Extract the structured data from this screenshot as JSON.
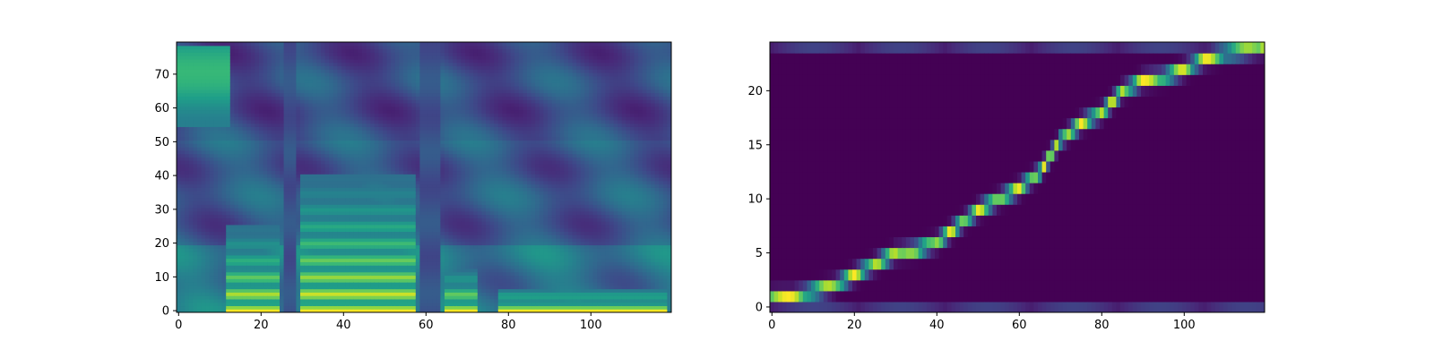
{
  "figure": {
    "background": "#ffffff",
    "colormap": "viridis"
  },
  "chart_data": [
    {
      "type": "heatmap",
      "subject": "mel-spectrogram",
      "title": "",
      "xlabel": "",
      "ylabel": "",
      "xlim": [
        -0.5,
        119.5
      ],
      "ylim": [
        -0.5,
        79.5
      ],
      "xticks": [
        0,
        20,
        40,
        60,
        80,
        100
      ],
      "yticks": [
        0,
        10,
        20,
        30,
        40,
        50,
        60,
        70
      ],
      "grid": false,
      "legend": "none",
      "frames": 120,
      "bins": 80,
      "silent_frames": [
        [
          26,
          28
        ],
        [
          59,
          63
        ]
      ],
      "bright_harmonic_regions": [
        {
          "frames": [
            12,
            24
          ],
          "bins": [
            0,
            25
          ]
        },
        {
          "frames": [
            30,
            57
          ],
          "bins": [
            0,
            40
          ]
        },
        {
          "frames": [
            65,
            72
          ],
          "bins": [
            0,
            12
          ]
        },
        {
          "frames": [
            78,
            118
          ],
          "bins": [
            0,
            6
          ]
        }
      ],
      "bright_high_band": {
        "frames": [
          0,
          12
        ],
        "bins": [
          55,
          78
        ]
      }
    },
    {
      "type": "heatmap",
      "subject": "alignment",
      "title": "",
      "xlabel": "",
      "ylabel": "",
      "xlim": [
        -0.5,
        119.5
      ],
      "ylim": [
        -0.5,
        24.5
      ],
      "xticks": [
        0,
        20,
        40,
        60,
        80,
        100
      ],
      "yticks": [
        0,
        5,
        10,
        15,
        20
      ],
      "grid": false,
      "legend": "none",
      "frames": 120,
      "tokens": 25,
      "path": [
        {
          "x": 0,
          "y": 1
        },
        {
          "x": 5,
          "y": 1
        },
        {
          "x": 10,
          "y": 1.5
        },
        {
          "x": 15,
          "y": 2
        },
        {
          "x": 20,
          "y": 3
        },
        {
          "x": 25,
          "y": 4
        },
        {
          "x": 30,
          "y": 5
        },
        {
          "x": 35,
          "y": 5.3
        },
        {
          "x": 40,
          "y": 6
        },
        {
          "x": 45,
          "y": 7.5
        },
        {
          "x": 50,
          "y": 9
        },
        {
          "x": 55,
          "y": 10
        },
        {
          "x": 60,
          "y": 11
        },
        {
          "x": 65,
          "y": 12.5
        },
        {
          "x": 70,
          "y": 15.5
        },
        {
          "x": 75,
          "y": 17
        },
        {
          "x": 80,
          "y": 18
        },
        {
          "x": 85,
          "y": 20
        },
        {
          "x": 90,
          "y": 21
        },
        {
          "x": 95,
          "y": 21.3
        },
        {
          "x": 100,
          "y": 22
        },
        {
          "x": 105,
          "y": 23
        },
        {
          "x": 110,
          "y": 23.5
        },
        {
          "x": 119,
          "y": 24
        }
      ],
      "edge_rows": [
        0,
        24
      ]
    }
  ]
}
